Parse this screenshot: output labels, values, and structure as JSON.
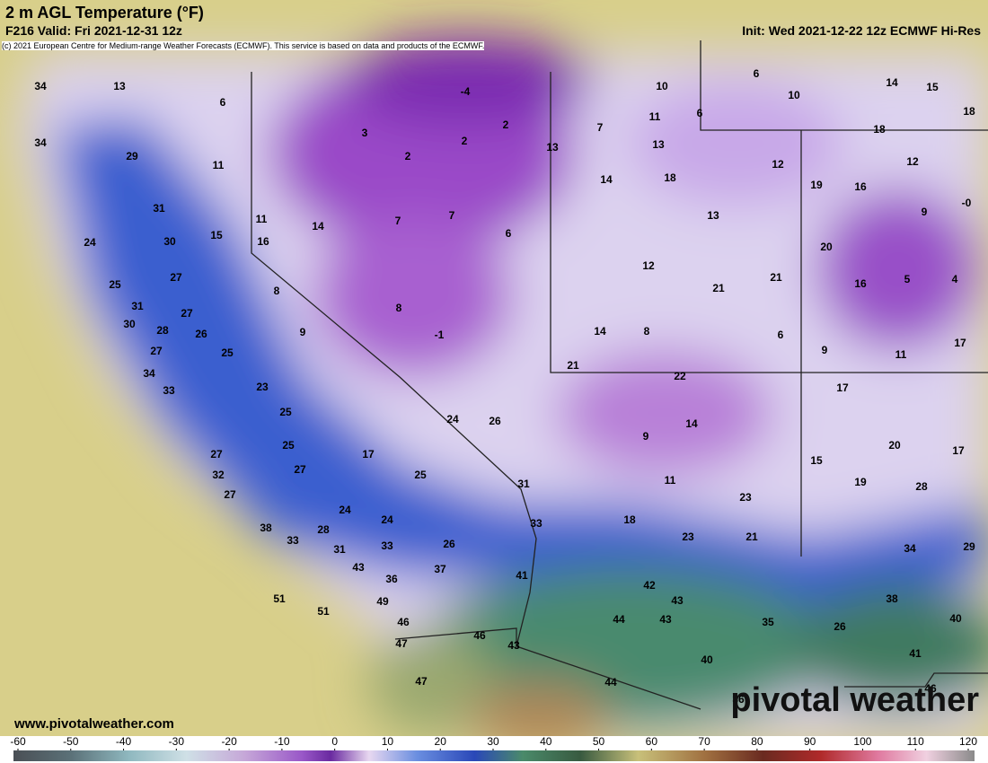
{
  "header": {
    "title": "2 m AGL Temperature (°F)",
    "valid": "F216 Valid: Fri 2021-12-31 12z",
    "init": "Init: Wed 2021-12-22 12z ECMWF Hi-Res",
    "credit": "(c) 2021 European Centre for Medium-range Weather Forecasts (ECMWF). This service is based on data and products of the ECMWF."
  },
  "map_labels": [
    "34",
    "13",
    "6",
    "34",
    "29",
    "11",
    "31",
    "11",
    "14",
    "7",
    "7",
    "6",
    "3",
    "2",
    "2",
    "2",
    "-4",
    "13",
    "7",
    "10",
    "11",
    "6",
    "13",
    "18",
    "14",
    "6",
    "10",
    "14",
    "15",
    "18",
    "18",
    "12",
    "12",
    "19",
    "16",
    "9",
    "-0",
    "13",
    "24",
    "30",
    "15",
    "16",
    "20",
    "12",
    "21",
    "21",
    "16",
    "5",
    "4",
    "25",
    "27",
    "8",
    "31",
    "27",
    "8",
    "28",
    "30",
    "26",
    "9",
    "-1",
    "14",
    "8",
    "6",
    "9",
    "11",
    "17",
    "27",
    "25",
    "21",
    "22",
    "34",
    "33",
    "23",
    "17",
    "25",
    "24",
    "26",
    "14",
    "9",
    "20",
    "17",
    "25",
    "17",
    "15",
    "27",
    "27",
    "25",
    "32",
    "11",
    "19",
    "28",
    "27",
    "31",
    "23",
    "24",
    "24",
    "28",
    "18",
    "33",
    "38",
    "23",
    "21",
    "33",
    "31",
    "33",
    "26",
    "34",
    "29",
    "43",
    "37",
    "36",
    "41",
    "42",
    "43",
    "51",
    "49",
    "51",
    "44",
    "43",
    "38",
    "35",
    "40",
    "46",
    "26",
    "47",
    "46",
    "43",
    "41",
    "40",
    "47",
    "44",
    "46",
    "36"
  ],
  "footer": {
    "website": "www.pivotalweather.com",
    "logo": "pivotal weather"
  },
  "colorbar": {
    "ticks": [
      -60,
      -50,
      -40,
      -30,
      -20,
      -10,
      0,
      10,
      20,
      30,
      40,
      50,
      60,
      70,
      80,
      90,
      100,
      110,
      120
    ]
  }
}
